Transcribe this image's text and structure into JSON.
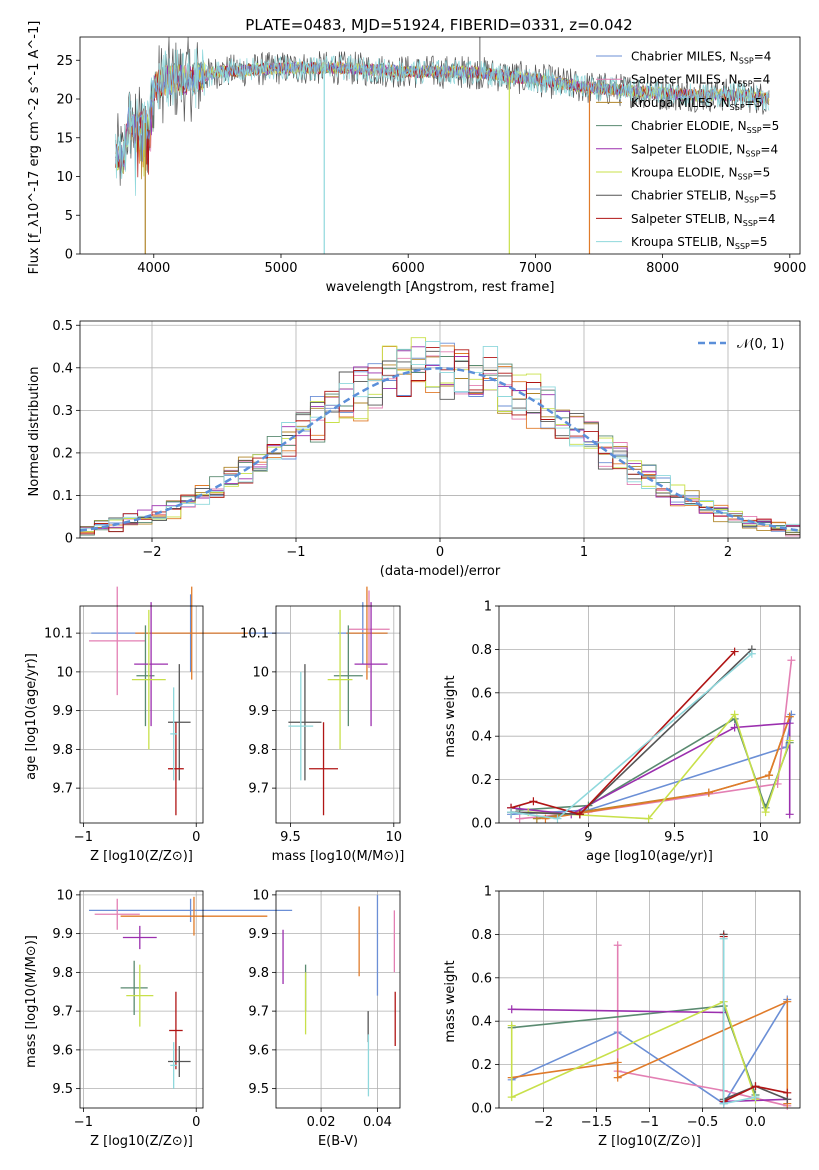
{
  "title": "PLATE=0483, MJD=51924, FIBERID=0331, z=0.042",
  "colors": {
    "Chabrier MILES": "#6b8fd6",
    "Salpeter MILES": "#e37fb3",
    "Kroupa MILES": "#b0852a",
    "Chabrier ELODIE": "#5a8a70",
    "Salpeter ELODIE": "#9b2fae",
    "Kroupa ELODIE": "#c8e04a",
    "Chabrier STELIB": "#555555",
    "Salpeter STELIB": "#b01515",
    "Kroupa STELIB": "#8fd8dc",
    "orange": "#e07b2a"
  },
  "chart_data": [
    {
      "id": "spectrum",
      "type": "line",
      "xlabel": "wavelength [Angstrom, rest frame]",
      "ylabel": "Flux [f_λ10^-17 erg cm^-2 s^-1 A^-1]",
      "xlim": [
        3420,
        9080
      ],
      "ylim": [
        0,
        28
      ],
      "xticks": [
        4000,
        5000,
        6000,
        7000,
        8000,
        9000
      ],
      "yticks": [
        0,
        5,
        10,
        15,
        20,
        25
      ],
      "grid": false,
      "legend_position": "top-right",
      "legend": [
        "Chabrier MILES, N_SSP=4",
        "Salpeter MILES, N_SSP=4",
        "Kroupa MILES, N_SSP=5",
        "Chabrier ELODIE, N_SSP=5",
        "Salpeter ELODIE, N_SSP=4",
        "Kroupa ELODIE, N_SSP=5",
        "Chabrier STELIB, N_SSP=5",
        "Salpeter STELIB, N_SSP=4",
        "Kroupa STELIB, N_SSP=5"
      ],
      "continuum": [
        [
          3700,
          13
        ],
        [
          3760,
          12
        ],
        [
          3800,
          17
        ],
        [
          3850,
          16
        ],
        [
          3900,
          16.5
        ],
        [
          3930,
          17
        ],
        [
          3960,
          16
        ],
        [
          4000,
          21.5
        ],
        [
          4100,
          22.5
        ],
        [
          4300,
          22.5
        ],
        [
          4500,
          23.5
        ],
        [
          5000,
          24
        ],
        [
          5500,
          24
        ],
        [
          6000,
          23.5
        ],
        [
          6500,
          23.5
        ],
        [
          7000,
          22.5
        ],
        [
          7400,
          21.5
        ],
        [
          7800,
          21
        ],
        [
          8200,
          20.5
        ],
        [
          8600,
          20.5
        ],
        [
          8840,
          20
        ]
      ],
      "features": [
        {
          "x": 3933,
          "y": 0,
          "series": "Kroupa MILES"
        },
        {
          "x": 5340,
          "y": 0,
          "series": "Kroupa STELIB"
        },
        {
          "x": 6795,
          "y": 0,
          "series": "Kroupa ELODIE"
        },
        {
          "x": 7425,
          "y": 0,
          "series": "orange"
        }
      ]
    },
    {
      "id": "residuals",
      "type": "histogram",
      "xlabel": "(data-model)/error",
      "ylabel": "Normed distribution",
      "xlim": [
        -2.5,
        2.5
      ],
      "ylim": [
        0,
        0.51
      ],
      "xticks": [
        -2,
        -1,
        0,
        1,
        2
      ],
      "yticks": [
        0.0,
        0.1,
        0.2,
        0.3,
        0.4,
        0.5
      ],
      "grid": true,
      "bin_width": 0.1,
      "legend_position": "top-right",
      "legend": [
        "𝒩(0, 1)"
      ]
    },
    {
      "id": "age-vs-Z",
      "type": "scatter",
      "xlabel": "Z [log10(Z/Z⊙)]",
      "ylabel": "age  [log10(age/yr)]",
      "xlim": [
        -1.03,
        0.06
      ],
      "ylim": [
        9.61,
        10.17
      ],
      "xticks": [
        -1,
        0
      ],
      "yticks": [
        9.7,
        9.8,
        9.9,
        10.0,
        10.1
      ],
      "grid": true,
      "points": [
        {
          "series": "Chabrier MILES",
          "x": -0.05,
          "y": 10.1,
          "xerr": 0.88,
          "yerr": 0.1
        },
        {
          "series": "Salpeter MILES",
          "x": -0.7,
          "y": 10.08,
          "xerr": 0.25,
          "yerr": 0.14
        },
        {
          "series": "orange",
          "x": -0.04,
          "y": 10.1,
          "xerr": 0.5,
          "yerr": 0.12
        },
        {
          "series": "Chabrier ELODIE",
          "x": -0.45,
          "y": 9.99,
          "xerr": 0.08,
          "yerr": 0.13
        },
        {
          "series": "Salpeter ELODIE",
          "x": -0.4,
          "y": 10.02,
          "xerr": 0.15,
          "yerr": 0.16
        },
        {
          "series": "Kroupa ELODIE",
          "x": -0.42,
          "y": 9.98,
          "xerr": 0.15,
          "yerr": 0.18
        },
        {
          "series": "Chabrier STELIB",
          "x": -0.15,
          "y": 9.87,
          "xerr": 0.1,
          "yerr": 0.15
        },
        {
          "series": "Salpeter STELIB",
          "x": -0.18,
          "y": 9.75,
          "xerr": 0.07,
          "yerr": 0.12
        },
        {
          "series": "Kroupa STELIB",
          "x": -0.2,
          "y": 9.84,
          "xerr": 0.03,
          "yerr": 0.12
        }
      ]
    },
    {
      "id": "age-vs-mass",
      "type": "scatter",
      "xlabel": "mass [log10(M/M⊙)]",
      "ylabel": "",
      "xlim": [
        9.43,
        10.03
      ],
      "ylim": [
        9.61,
        10.17
      ],
      "xticks": [
        9.5,
        10.0
      ],
      "yticks": [
        9.7,
        9.8,
        9.9,
        10.0,
        10.1
      ],
      "grid": true,
      "points": [
        {
          "series": "Chabrier MILES",
          "x": 9.85,
          "y": 10.1,
          "xerr": 0.12,
          "yerr": 0.08
        },
        {
          "series": "Salpeter MILES",
          "x": 9.88,
          "y": 10.11,
          "xerr": 0.1,
          "yerr": 0.1
        },
        {
          "series": "orange",
          "x": 9.87,
          "y": 10.1,
          "xerr": 0.1,
          "yerr": 0.12
        },
        {
          "series": "Chabrier ELODIE",
          "x": 9.78,
          "y": 9.99,
          "xerr": 0.07,
          "yerr": 0.13
        },
        {
          "series": "Salpeter ELODIE",
          "x": 9.89,
          "y": 10.02,
          "xerr": 0.08,
          "yerr": 0.16
        },
        {
          "series": "Kroupa ELODIE",
          "x": 9.74,
          "y": 9.98,
          "xerr": 0.06,
          "yerr": 0.18
        },
        {
          "series": "Chabrier STELIB",
          "x": 9.57,
          "y": 9.87,
          "xerr": 0.08,
          "yerr": 0.15
        },
        {
          "series": "Salpeter STELIB",
          "x": 9.66,
          "y": 9.75,
          "xerr": 0.07,
          "yerr": 0.12
        },
        {
          "series": "Kroupa STELIB",
          "x": 9.55,
          "y": 9.86,
          "xerr": 0.06,
          "yerr": 0.14
        }
      ]
    },
    {
      "id": "weight-vs-age",
      "type": "line",
      "xlabel": "age  [log10(age/yr)]",
      "ylabel": "mass weight",
      "xlim": [
        8.48,
        10.23
      ],
      "ylim": [
        0,
        1.0
      ],
      "xticks": [
        9.0,
        9.5,
        10.0
      ],
      "yticks": [
        0.0,
        0.2,
        0.4,
        0.6,
        0.8,
        1.0
      ],
      "grid": true,
      "series": [
        {
          "name": "Chabrier MILES",
          "x": [
            8.55,
            9.0,
            10.15,
            10.18
          ],
          "y": [
            0.04,
            0.06,
            0.35,
            0.5
          ]
        },
        {
          "name": "Salpeter MILES",
          "x": [
            8.6,
            9.0,
            10.1,
            10.18
          ],
          "y": [
            0.02,
            0.05,
            0.18,
            0.75
          ]
        },
        {
          "name": "Kroupa MILES",
          "x": [
            8.7,
            9.7,
            10.05,
            10.17
          ],
          "y": [
            0.02,
            0.14,
            0.22,
            0.49
          ]
        },
        {
          "name": "orange",
          "x": [
            8.75,
            9.7,
            10.05,
            10.17
          ],
          "y": [
            0.02,
            0.14,
            0.22,
            0.49
          ]
        },
        {
          "name": "Chabrier ELODIE",
          "x": [
            8.6,
            9.0,
            9.85,
            10.03,
            10.17
          ],
          "y": [
            0.06,
            0.08,
            0.48,
            0.07,
            0.37
          ]
        },
        {
          "name": "Salpeter ELODIE",
          "x": [
            8.55,
            8.9,
            9.85,
            10.17,
            10.17
          ],
          "y": [
            0.07,
            0.04,
            0.44,
            0.46,
            0.04
          ]
        },
        {
          "name": "Kroupa ELODIE",
          "x": [
            8.65,
            9.35,
            9.85,
            10.03,
            10.17
          ],
          "y": [
            0.05,
            0.02,
            0.5,
            0.05,
            0.38
          ]
        },
        {
          "name": "Chabrier STELIB",
          "x": [
            8.55,
            8.95,
            9.95
          ],
          "y": [
            0.05,
            0.04,
            0.8
          ]
        },
        {
          "name": "Salpeter STELIB",
          "x": [
            8.55,
            8.68,
            8.95,
            9.85
          ],
          "y": [
            0.07,
            0.1,
            0.04,
            0.79
          ]
        },
        {
          "name": "Kroupa STELIB",
          "x": [
            8.55,
            8.82,
            9.95
          ],
          "y": [
            0.05,
            0.02,
            0.78
          ]
        }
      ]
    },
    {
      "id": "mass-vs-Z",
      "type": "scatter",
      "xlabel": "Z [log10(Z/Z⊙)]",
      "ylabel": "mass [log10(M/M⊙)]",
      "xlim": [
        -1.03,
        0.06
      ],
      "ylim": [
        9.45,
        10.01
      ],
      "xticks": [
        -1,
        0
      ],
      "yticks": [
        9.5,
        9.6,
        9.7,
        9.8,
        9.9,
        10.0
      ],
      "grid": true,
      "points": [
        {
          "series": "Chabrier MILES",
          "x": -0.05,
          "y": 9.96,
          "xerr": 0.9,
          "yerr": 0.03
        },
        {
          "series": "Salpeter MILES",
          "x": -0.7,
          "y": 9.95,
          "xerr": 0.2,
          "yerr": 0.04
        },
        {
          "series": "orange",
          "x": -0.02,
          "y": 9.945,
          "xerr": 0.65,
          "yerr": 0.05
        },
        {
          "series": "Salpeter ELODIE",
          "x": -0.5,
          "y": 9.89,
          "xerr": 0.15,
          "yerr": 0.03
        },
        {
          "series": "Chabrier ELODIE",
          "x": -0.55,
          "y": 9.76,
          "xerr": 0.12,
          "yerr": 0.07
        },
        {
          "series": "Kroupa ELODIE",
          "x": -0.5,
          "y": 9.74,
          "xerr": 0.12,
          "yerr": 0.08
        },
        {
          "series": "Salpeter STELIB",
          "x": -0.18,
          "y": 9.65,
          "xerr": 0.06,
          "yerr": 0.1
        },
        {
          "series": "Chabrier STELIB",
          "x": -0.15,
          "y": 9.57,
          "xerr": 0.1,
          "yerr": 0.04
        },
        {
          "series": "Kroupa STELIB",
          "x": -0.2,
          "y": 9.56,
          "xerr": 0.03,
          "yerr": 0.06
        }
      ]
    },
    {
      "id": "mass-vs-EBV",
      "type": "scatter",
      "xlabel": "E(B-V)",
      "ylabel": "",
      "xlim": [
        0.004,
        0.048
      ],
      "ylim": [
        9.45,
        10.01
      ],
      "xticks": [
        0.02,
        0.04
      ],
      "yticks": [
        9.5,
        9.6,
        9.7,
        9.8,
        9.9,
        10.0
      ],
      "grid": true,
      "points": [
        {
          "series": "Salpeter ELODIE",
          "x": 0.0065,
          "y": 9.84,
          "yerr": 0.07
        },
        {
          "series": "Chabrier ELODIE",
          "x": 0.0145,
          "y": 9.76,
          "yerr": 0.06
        },
        {
          "series": "Kroupa ELODIE",
          "x": 0.0145,
          "y": 9.72,
          "yerr": 0.08
        },
        {
          "series": "orange",
          "x": 0.0335,
          "y": 9.88,
          "yerr": 0.09
        },
        {
          "series": "Chabrier STELIB",
          "x": 0.0367,
          "y": 9.66,
          "yerr": 0.04
        },
        {
          "series": "Kroupa STELIB",
          "x": 0.0368,
          "y": 9.56,
          "yerr": 0.08
        },
        {
          "series": "Chabrier MILES",
          "x": 0.04,
          "y": 9.87,
          "yerr": 0.13
        },
        {
          "series": "Salpeter MILES",
          "x": 0.046,
          "y": 9.88,
          "yerr": 0.08
        },
        {
          "series": "Salpeter STELIB",
          "x": 0.0463,
          "y": 9.68,
          "yerr": 0.07
        }
      ]
    },
    {
      "id": "weight-vs-Z",
      "type": "line",
      "xlabel": "Z [log10(Z/Z⊙)]",
      "ylabel": "mass weight",
      "xlim": [
        -2.42,
        0.42
      ],
      "ylim": [
        0,
        1.0
      ],
      "xticks": [
        -2.0,
        -1.5,
        -1.0,
        -0.5,
        0.0
      ],
      "yticks": [
        0.0,
        0.2,
        0.4,
        0.6,
        0.8,
        1.0
      ],
      "grid": true,
      "series": [
        {
          "name": "Chabrier MILES",
          "x": [
            -2.3,
            -1.3,
            -0.3,
            0.3
          ],
          "y": [
            0.13,
            0.35,
            0.02,
            0.5
          ]
        },
        {
          "name": "Salpeter MILES",
          "x": [
            -1.3,
            -1.3,
            -0.3,
            0.3
          ],
          "y": [
            0.75,
            0.17,
            0.08,
            0.01
          ]
        },
        {
          "name": "orange",
          "x": [
            -2.3,
            -1.3,
            -1.3,
            0.3,
            0.3
          ],
          "y": [
            0.14,
            0.21,
            0.14,
            0.49,
            0.02
          ]
        },
        {
          "name": "Chabrier ELODIE",
          "x": [
            -2.3,
            -0.3,
            0.0
          ],
          "y": [
            0.37,
            0.47,
            0.06
          ]
        },
        {
          "name": "Salpeter ELODIE",
          "x": [
            -2.3,
            -0.3,
            -0.3,
            0.3
          ],
          "y": [
            0.455,
            0.44,
            0.03,
            0.04
          ]
        },
        {
          "name": "Kroupa ELODIE",
          "x": [
            -2.3,
            -2.3,
            -0.3,
            0.0
          ],
          "y": [
            0.38,
            0.05,
            0.49,
            0.04
          ]
        },
        {
          "name": "Chabrier STELIB",
          "x": [
            -0.3,
            -0.3,
            0.0,
            0.3
          ],
          "y": [
            0.8,
            0.04,
            0.1,
            0.04
          ]
        },
        {
          "name": "Salpeter STELIB",
          "x": [
            -0.3,
            -0.3,
            0.0,
            0.3
          ],
          "y": [
            0.79,
            0.03,
            0.1,
            0.07
          ]
        },
        {
          "name": "Kroupa STELIB",
          "x": [
            -0.3,
            -0.3,
            0.0
          ],
          "y": [
            0.78,
            0.02,
            0.05
          ]
        }
      ]
    }
  ]
}
